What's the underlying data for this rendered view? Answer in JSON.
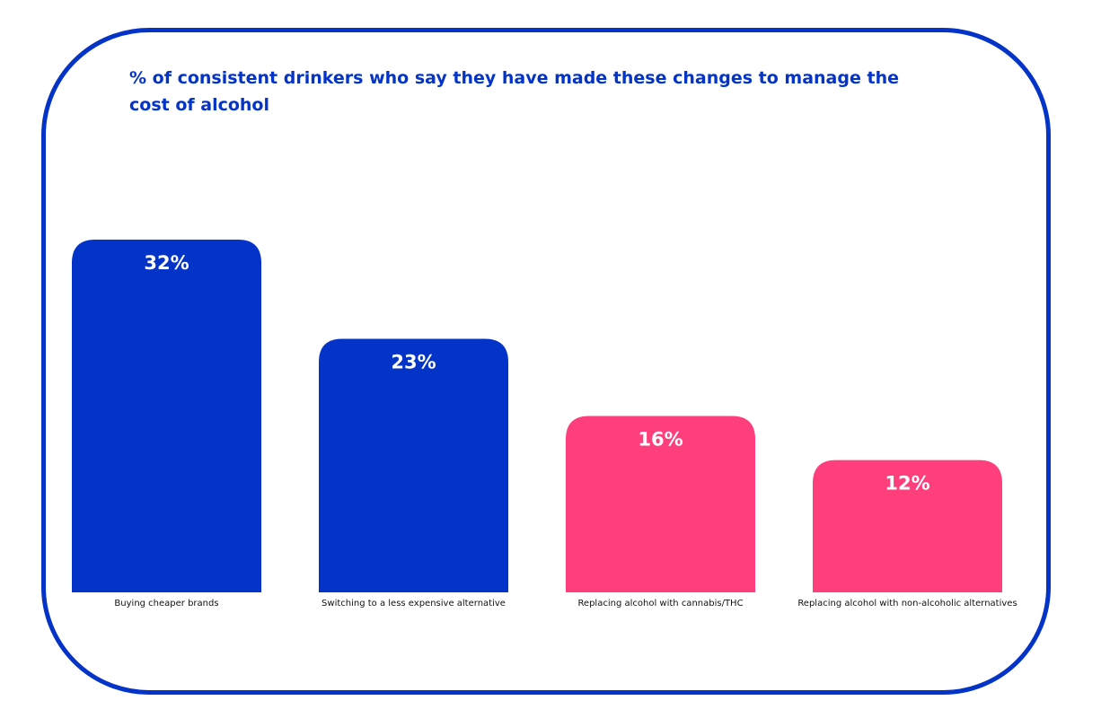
{
  "chart_data": {
    "type": "bar",
    "title": "% of consistent drinkers who say they have made these changes to manage the cost of alcohol",
    "categories": [
      "Buying cheaper brands",
      "Switching to a less expensive alternative",
      "Replacing alcohol with cannabis/THC",
      "Replacing alcohol with non-alcoholic alternatives"
    ],
    "values": [
      32,
      23,
      16,
      12
    ],
    "value_labels": [
      "32%",
      "23%",
      "16%",
      "12%"
    ],
    "bar_colors": [
      "#0433c8",
      "#0433c8",
      "#ff3e7c",
      "#ff3e7c"
    ],
    "ylim": [
      0,
      32
    ],
    "xlabel": "",
    "ylabel": "",
    "grid": false,
    "legend": "none"
  },
  "colors": {
    "frame": "#0433c8",
    "title": "#0433c8"
  }
}
